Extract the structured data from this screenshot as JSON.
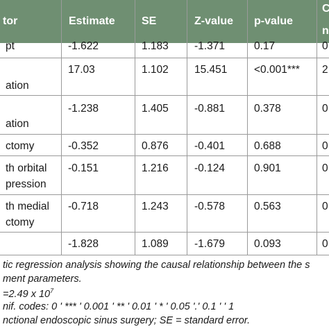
{
  "table": {
    "headers": {
      "predictor": "tor",
      "estimate": "Estimate",
      "se": "SE",
      "z": "Z-value",
      "p": "p-value",
      "extra_top": "C",
      "extra_bottom": "n"
    },
    "rows": [
      {
        "label1": "pt",
        "label2": "",
        "estimate": "-1.622",
        "se": "1.183",
        "z": "-1.371",
        "p": "0.17",
        "extra": "0"
      },
      {
        "label1": "",
        "label2": "ation",
        "estimate": "17.03",
        "se": "1.102",
        "z": "15.451",
        "p": "<0.001***",
        "extra": "2"
      },
      {
        "label1": "",
        "label2": "ation",
        "estimate": "-1.238",
        "se": "1.405",
        "z": "-0.881",
        "p": "0.378",
        "extra": "0"
      },
      {
        "label1": "ctomy",
        "label2": "",
        "estimate": "-0.352",
        "se": "0.876",
        "z": "-0.401",
        "p": "0.688",
        "extra": "0"
      },
      {
        "label1": "th orbital",
        "label2": "pression",
        "estimate": "-0.151",
        "se": "1.216",
        "z": "-0.124",
        "p": "0.901",
        "extra": "0"
      },
      {
        "label1": "th medial",
        "label2": "ctomy",
        "estimate": "-0.718",
        "se": "1.243",
        "z": "-0.578",
        "p": "0.563",
        "extra": "0"
      },
      {
        "label1": "",
        "label2": "",
        "estimate": "-1.828",
        "se": "1.089",
        "z": "-1.679",
        "p": "0.093",
        "extra": "0"
      }
    ]
  },
  "notes": {
    "line1": "tic regression analysis showing the causal relationship between the s",
    "line2": "ment parameters.",
    "line3_base": "=2.49 x 10",
    "line3_exp": "7",
    "line4": "nif. codes: 0 ' *** ' 0.001 ' ** ' 0.01 ' * ' 0.05 '.' 0.1 ' ' 1",
    "line5": "nctional endoscopic sinus surgery; SE = standard error."
  }
}
